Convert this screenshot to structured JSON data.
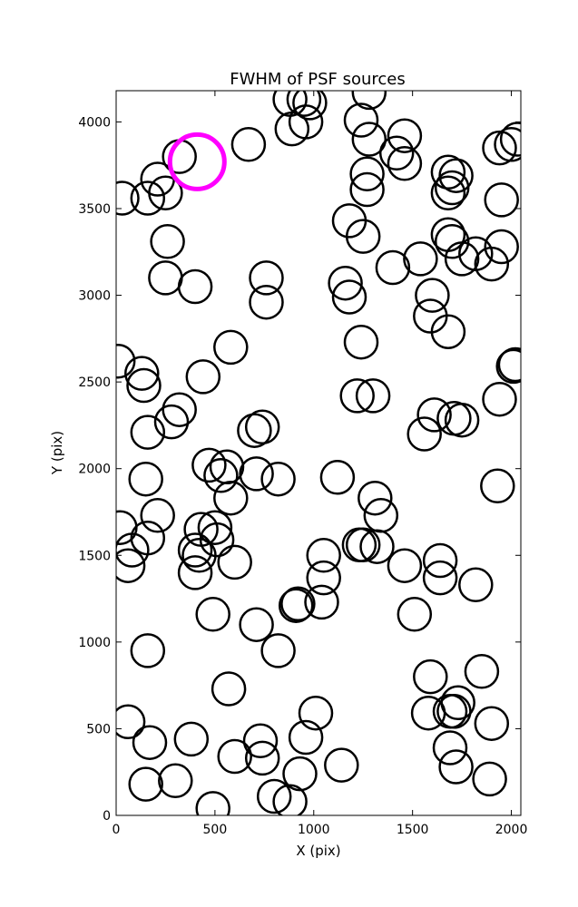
{
  "chart_data": {
    "type": "scatter",
    "title": "FWHM of PSF sources",
    "xlabel": "X (pix)",
    "ylabel": "Y (pix)",
    "xlim": [
      0,
      2048
    ],
    "ylim": [
      0,
      4180
    ],
    "xticks": [
      0,
      500,
      1000,
      1500,
      2000
    ],
    "yticks": [
      0,
      500,
      1000,
      1500,
      2000,
      2500,
      3000,
      3500,
      4000
    ],
    "grid": false,
    "legend": "none",
    "marker_color": "#000000",
    "highlight_color": "#ff00ff",
    "series": [
      {
        "marker": "open-circle",
        "color": "#000000",
        "points": [
          [
            30,
            3560
          ],
          [
            160,
            3560
          ],
          [
            210,
            3670
          ],
          [
            250,
            3590
          ],
          [
            260,
            3310
          ],
          [
            250,
            3100
          ],
          [
            400,
            3050
          ],
          [
            320,
            3800
          ],
          [
            670,
            3870
          ],
          [
            880,
            4130
          ],
          [
            950,
            4130
          ],
          [
            890,
            3960
          ],
          [
            960,
            4000
          ],
          [
            980,
            4110
          ],
          [
            1240,
            4010
          ],
          [
            1280,
            4170
          ],
          [
            1280,
            3900
          ],
          [
            1420,
            3820
          ],
          [
            1460,
            3760
          ],
          [
            1460,
            3920
          ],
          [
            1270,
            3700
          ],
          [
            1270,
            3610
          ],
          [
            1180,
            3430
          ],
          [
            1250,
            3340
          ],
          [
            1680,
            3710
          ],
          [
            1720,
            3690
          ],
          [
            1680,
            3590
          ],
          [
            1700,
            3620
          ],
          [
            1680,
            3350
          ],
          [
            1700,
            3310
          ],
          [
            1750,
            3210
          ],
          [
            1820,
            3240
          ],
          [
            1900,
            3180
          ],
          [
            1950,
            3280
          ],
          [
            1950,
            3550
          ],
          [
            1940,
            3850
          ],
          [
            2000,
            3870
          ],
          [
            2030,
            3900
          ],
          [
            1540,
            3210
          ],
          [
            1400,
            3160
          ],
          [
            1160,
            3070
          ],
          [
            1180,
            2990
          ],
          [
            760,
            3100
          ],
          [
            760,
            2960
          ],
          [
            580,
            2700
          ],
          [
            440,
            2530
          ],
          [
            10,
            2620
          ],
          [
            130,
            2550
          ],
          [
            140,
            2480
          ],
          [
            320,
            2340
          ],
          [
            280,
            2270
          ],
          [
            160,
            2210
          ],
          [
            1240,
            2730
          ],
          [
            1600,
            3000
          ],
          [
            1590,
            2880
          ],
          [
            1680,
            2790
          ],
          [
            2010,
            2590
          ],
          [
            2020,
            2600
          ],
          [
            1940,
            2400
          ],
          [
            1220,
            2420
          ],
          [
            1300,
            2420
          ],
          [
            1610,
            2310
          ],
          [
            1560,
            2200
          ],
          [
            1710,
            2290
          ],
          [
            1750,
            2280
          ],
          [
            700,
            2220
          ],
          [
            740,
            2240
          ],
          [
            470,
            2020
          ],
          [
            560,
            2010
          ],
          [
            530,
            1960
          ],
          [
            710,
            1970
          ],
          [
            820,
            1940
          ],
          [
            1120,
            1950
          ],
          [
            150,
            1940
          ],
          [
            580,
            1830
          ],
          [
            210,
            1730
          ],
          [
            1930,
            1900
          ],
          [
            1310,
            1830
          ],
          [
            1340,
            1730
          ],
          [
            20,
            1660
          ],
          [
            80,
            1530
          ],
          [
            60,
            1440
          ],
          [
            160,
            1600
          ],
          [
            430,
            1650
          ],
          [
            500,
            1660
          ],
          [
            400,
            1530
          ],
          [
            420,
            1500
          ],
          [
            510,
            1590
          ],
          [
            400,
            1400
          ],
          [
            600,
            1460
          ],
          [
            1230,
            1560
          ],
          [
            1250,
            1560
          ],
          [
            1320,
            1550
          ],
          [
            1050,
            1500
          ],
          [
            1050,
            1370
          ],
          [
            1040,
            1230
          ],
          [
            920,
            1220
          ],
          [
            910,
            1210
          ],
          [
            1460,
            1440
          ],
          [
            1640,
            1470
          ],
          [
            1640,
            1370
          ],
          [
            1820,
            1330
          ],
          [
            490,
            1160
          ],
          [
            710,
            1100
          ],
          [
            820,
            950
          ],
          [
            160,
            950
          ],
          [
            1510,
            1160
          ],
          [
            60,
            540
          ],
          [
            170,
            420
          ],
          [
            380,
            440
          ],
          [
            570,
            730
          ],
          [
            730,
            430
          ],
          [
            740,
            330
          ],
          [
            600,
            340
          ],
          [
            300,
            200
          ],
          [
            150,
            180
          ],
          [
            490,
            40
          ],
          [
            800,
            110
          ],
          [
            880,
            80
          ],
          [
            930,
            240
          ],
          [
            960,
            450
          ],
          [
            1010,
            590
          ],
          [
            1140,
            290
          ],
          [
            1580,
            590
          ],
          [
            1590,
            800
          ],
          [
            1690,
            600
          ],
          [
            1710,
            600
          ],
          [
            1730,
            650
          ],
          [
            1690,
            390
          ],
          [
            1720,
            280
          ],
          [
            1850,
            830
          ],
          [
            1900,
            530
          ],
          [
            1890,
            210
          ]
        ]
      },
      {
        "marker": "open-circle",
        "color": "#ff00ff",
        "points": [
          [
            410,
            3770
          ]
        ]
      }
    ]
  }
}
